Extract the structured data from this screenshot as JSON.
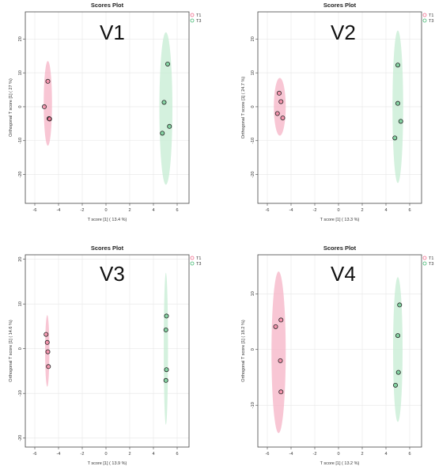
{
  "colors": {
    "T1": "#f06b8c",
    "T3": "#44bb73",
    "T1_fill": "#f5b3c5",
    "T3_fill": "#c6ecd3"
  },
  "chart_data": [
    {
      "type": "scatter",
      "panel_label": "V1",
      "title": "Scores Plot",
      "xlabel": "T score [1] ( 13.4 %)",
      "ylabel": "Orthogonal T score [1] ( 27 %)",
      "xlim": [
        -6.8,
        7.0
      ],
      "ylim": [
        -28.5,
        28.0
      ],
      "xticks": [
        -6,
        -4,
        -2,
        0,
        2,
        4,
        6
      ],
      "yticks": [
        -20,
        -10,
        0,
        10,
        20
      ],
      "legend": [
        "T1",
        "T3"
      ],
      "legend_position": "top-right",
      "grid": true,
      "series": [
        {
          "name": "T1",
          "points": [
            [
              -4.9,
              7.5
            ],
            [
              -5.2,
              0
            ],
            [
              -4.8,
              -3.5
            ],
            [
              -4.75,
              -3.6
            ]
          ],
          "ellipse": {
            "cx": -4.9,
            "cy": 1.0,
            "rx": 0.35,
            "ry": 12.5
          }
        },
        {
          "name": "T3",
          "points": [
            [
              5.2,
              12.6
            ],
            [
              4.9,
              1.3
            ],
            [
              5.35,
              -5.8
            ],
            [
              4.75,
              -7.8
            ]
          ],
          "ellipse": {
            "cx": 5.05,
            "cy": -0.5,
            "rx": 0.55,
            "ry": 22.5
          }
        }
      ]
    },
    {
      "type": "scatter",
      "panel_label": "V2",
      "title": "Scores Plot",
      "xlabel": "T score [1] ( 13.3 %)",
      "ylabel": "Orthogonal T score [1] ( 24.7 %)",
      "xlim": [
        -6.8,
        7.0
      ],
      "ylim": [
        -28.5,
        28.0
      ],
      "xticks": [
        -6,
        -4,
        -2,
        0,
        2,
        4,
        6
      ],
      "yticks": [
        -20,
        -10,
        0,
        10,
        20
      ],
      "legend": [
        "T1",
        "T3"
      ],
      "legend_position": "top-right",
      "grid": true,
      "series": [
        {
          "name": "T1",
          "points": [
            [
              -5.0,
              4.0
            ],
            [
              -4.85,
              1.5
            ],
            [
              -5.15,
              -2.0
            ],
            [
              -4.7,
              -3.3
            ]
          ],
          "ellipse": {
            "cx": -4.95,
            "cy": 0.0,
            "rx": 0.5,
            "ry": 8.5
          }
        },
        {
          "name": "T3",
          "points": [
            [
              5.0,
              12.3
            ],
            [
              5.0,
              1.0
            ],
            [
              5.25,
              -4.3
            ],
            [
              4.75,
              -9.2
            ]
          ],
          "ellipse": {
            "cx": 5.0,
            "cy": 0.0,
            "rx": 0.45,
            "ry": 22.5
          }
        }
      ]
    },
    {
      "type": "scatter",
      "panel_label": "V3",
      "title": "Scores Plot",
      "xlabel": "T score [1] ( 13.9 %)",
      "ylabel": "Orthogonal T score [1] ( 14.6 %)",
      "xlim": [
        -6.8,
        7.0
      ],
      "ylim": [
        -22.0,
        21.0
      ],
      "xticks": [
        -6,
        -4,
        -2,
        0,
        2,
        4,
        6
      ],
      "yticks": [
        -20,
        -10,
        0,
        10,
        20
      ],
      "legend": [
        "T1",
        "T3"
      ],
      "legend_position": "top-right",
      "grid": true,
      "series": [
        {
          "name": "T1",
          "points": [
            [
              -5.05,
              3.2
            ],
            [
              -4.95,
              1.4
            ],
            [
              -4.9,
              -0.7
            ],
            [
              -4.85,
              -4.0
            ]
          ],
          "ellipse": {
            "cx": -4.95,
            "cy": -0.5,
            "rx": 0.18,
            "ry": 8.0
          }
        },
        {
          "name": "T3",
          "points": [
            [
              5.1,
              7.3
            ],
            [
              5.05,
              4.2
            ],
            [
              5.1,
              -4.7
            ],
            [
              5.05,
              -7.1
            ]
          ],
          "ellipse": {
            "cx": 5.05,
            "cy": 0.0,
            "rx": 0.18,
            "ry": 17.0
          }
        }
      ]
    },
    {
      "type": "scatter",
      "panel_label": "V4",
      "title": "Scores Plot",
      "xlabel": "T score [1] ( 13.2 %)",
      "ylabel": "Orthogonal T score [1] ( 18.2 %)",
      "xlim": [
        -6.8,
        7.0
      ],
      "ylim": [
        -17.5,
        17.0
      ],
      "xticks": [
        -6,
        -4,
        -2,
        0,
        2,
        4,
        6
      ],
      "yticks": [
        -10,
        0,
        10
      ],
      "legend": [
        "T1",
        "T3"
      ],
      "legend_position": "top-right",
      "grid": true,
      "series": [
        {
          "name": "T1",
          "points": [
            [
              -5.3,
              4.1
            ],
            [
              -4.85,
              5.3
            ],
            [
              -4.9,
              -2.0
            ],
            [
              -4.85,
              -7.6
            ]
          ],
          "ellipse": {
            "cx": -5.05,
            "cy": -0.5,
            "rx": 0.6,
            "ry": 14.5
          }
        },
        {
          "name": "T3",
          "points": [
            [
              5.15,
              8.0
            ],
            [
              5.0,
              2.5
            ],
            [
              5.05,
              -4.1
            ],
            [
              4.8,
              -6.4
            ]
          ],
          "ellipse": {
            "cx": 5.0,
            "cy": 0.0,
            "rx": 0.4,
            "ry": 13.0
          }
        }
      ]
    }
  ]
}
